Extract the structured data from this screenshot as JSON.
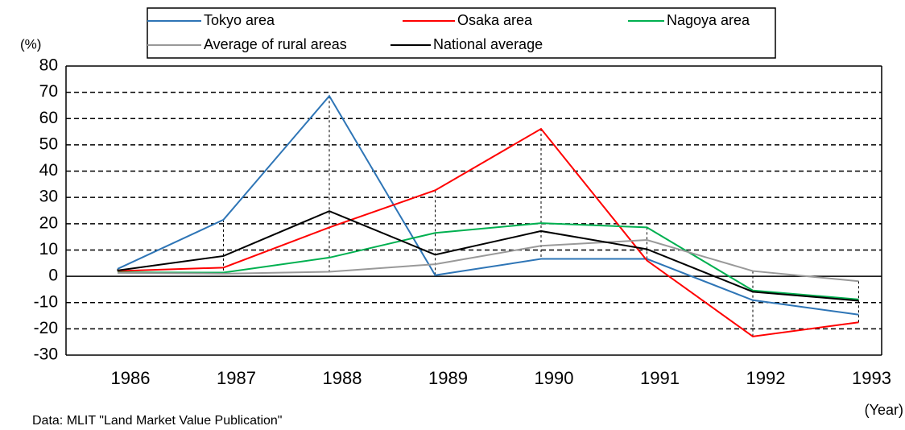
{
  "chart_data": {
    "type": "line",
    "y_unit": "(%)",
    "x_unit": "(Year)",
    "source": "Data: MLIT \"Land Market Value Publication\"",
    "categories": [
      "1986",
      "1987",
      "1988",
      "1989",
      "1990",
      "1991",
      "1992",
      "1993"
    ],
    "series": [
      {
        "name": "Tokyo area",
        "color": "#2e75b6",
        "values": [
          2.8,
          21.5,
          68.6,
          0.4,
          6.6,
          6.6,
          -9.1,
          -14.6
        ]
      },
      {
        "name": "Osaka area",
        "color": "#ff0000",
        "values": [
          2.0,
          3.3,
          18.6,
          32.7,
          56.1,
          6.0,
          -22.9,
          -17.5
        ]
      },
      {
        "name": "Nagoya area",
        "color": "#00b050",
        "values": [
          1.5,
          1.4,
          7.1,
          16.5,
          20.2,
          18.6,
          -5.4,
          -8.8
        ]
      },
      {
        "name": "Average of rural areas",
        "color": "#999999",
        "values": [
          1.3,
          1.0,
          1.7,
          4.6,
          11.6,
          13.8,
          2.0,
          -1.9
        ]
      },
      {
        "name": "National average",
        "color": "#000000",
        "values": [
          2.2,
          7.7,
          24.8,
          8.2,
          17.2,
          10.3,
          -5.9,
          -9.3
        ]
      }
    ],
    "ylim": [
      -30,
      80
    ],
    "yticks": [
      -30,
      -20,
      -10,
      0,
      10,
      20,
      30,
      40,
      50,
      60,
      70,
      80
    ],
    "grid": true,
    "drop_lines": true
  }
}
